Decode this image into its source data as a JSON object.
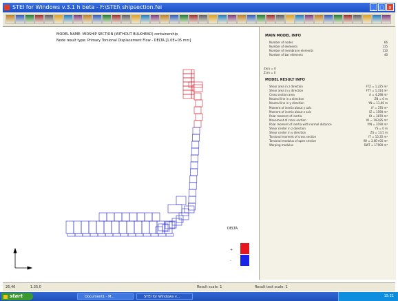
{
  "window": {
    "title": "STEI for Windows v.3.1 h beta - F:\\STEI\\ shipsection.fei",
    "min_label": "_",
    "max_label": "□",
    "close_label": "x"
  },
  "model": {
    "name_line": "MODEL NAME: MIDSHIP SECTION (WITHOUT BULKHEAD) containership",
    "result_line": "Node result type: Primary Torsional Displacement Flow - DELTA [1.0E+05 mm]"
  },
  "legend": {
    "title": "DELTA",
    "top_label": "+",
    "bottom_label": "-",
    "colors": [
      "#e8141e",
      "#1a24e8"
    ]
  },
  "colors": {
    "positive": "#e8141e",
    "negative": "#1a24e8",
    "mesh_red": "#d02030",
    "mesh_blue": "#3030c8"
  },
  "panel": {
    "main_header": "MAIN MODEL INFO",
    "main_rows": [
      {
        "k": "Number of nodes",
        "v": "66"
      },
      {
        "k": "Number of elements",
        "v": "135"
      },
      {
        "k": "Number of membrane elements",
        "v": "110"
      },
      {
        "k": "Number of bar elements",
        "v": "40"
      }
    ],
    "zero_lines": [
      "Zero = 0",
      "Zcm = 0"
    ],
    "result_header": "MODEL RESULT INFO",
    "result_rows": [
      {
        "k": "Shear area in z direction",
        "v": "FTZ =   1,225 m²"
      },
      {
        "k": "Shear area in y direction",
        "v": "FTY =   1,314 m²"
      },
      {
        "k": "Cross section area",
        "v": "A =   4,298 m²"
      },
      {
        "k": "Neutral line in z direction",
        "v": "ZN =   0 m"
      },
      {
        "k": "Neutral line in y direction",
        "v": "YN =   11,06 m"
      },
      {
        "k": "Moment of inertia about y axis",
        "v": "IY =   370 m⁴"
      },
      {
        "k": "Moment of inertia about z axis",
        "v": "IZ =   1590 m⁴"
      },
      {
        "k": "Polar moment of inertia",
        "v": "IO =   3870 m⁴"
      },
      {
        "k": "Movement of cross section",
        "v": "IO =   193,85 m⁴"
      },
      {
        "k": "Polar moment of inertia with normal distance",
        "v": "IYN =   3190 m⁴"
      },
      {
        "k": "Shear center in z direction",
        "v": "YS =   0 m"
      },
      {
        "k": "Shear center in y direction",
        "v": "ZS =   13,5 m"
      },
      {
        "k": "Torsional moment of cross section",
        "v": "IT =   15,35 m⁴"
      },
      {
        "k": "Torsional modulus of open section",
        "v": "IW =   3,0E+05 m⁶"
      },
      {
        "k": "Warping modulus",
        "v": "SWT =   17900 m³"
      }
    ]
  },
  "status": {
    "coords": "26,46",
    "zoom": "1.35,0",
    "mid_label": "Result scale: 1",
    "right_label": "Result text scale: 1"
  },
  "taskbar": {
    "start": "start",
    "tasks": [
      "Document1 - M...",
      "STEI for Windows v..."
    ],
    "clock": "15:21"
  }
}
